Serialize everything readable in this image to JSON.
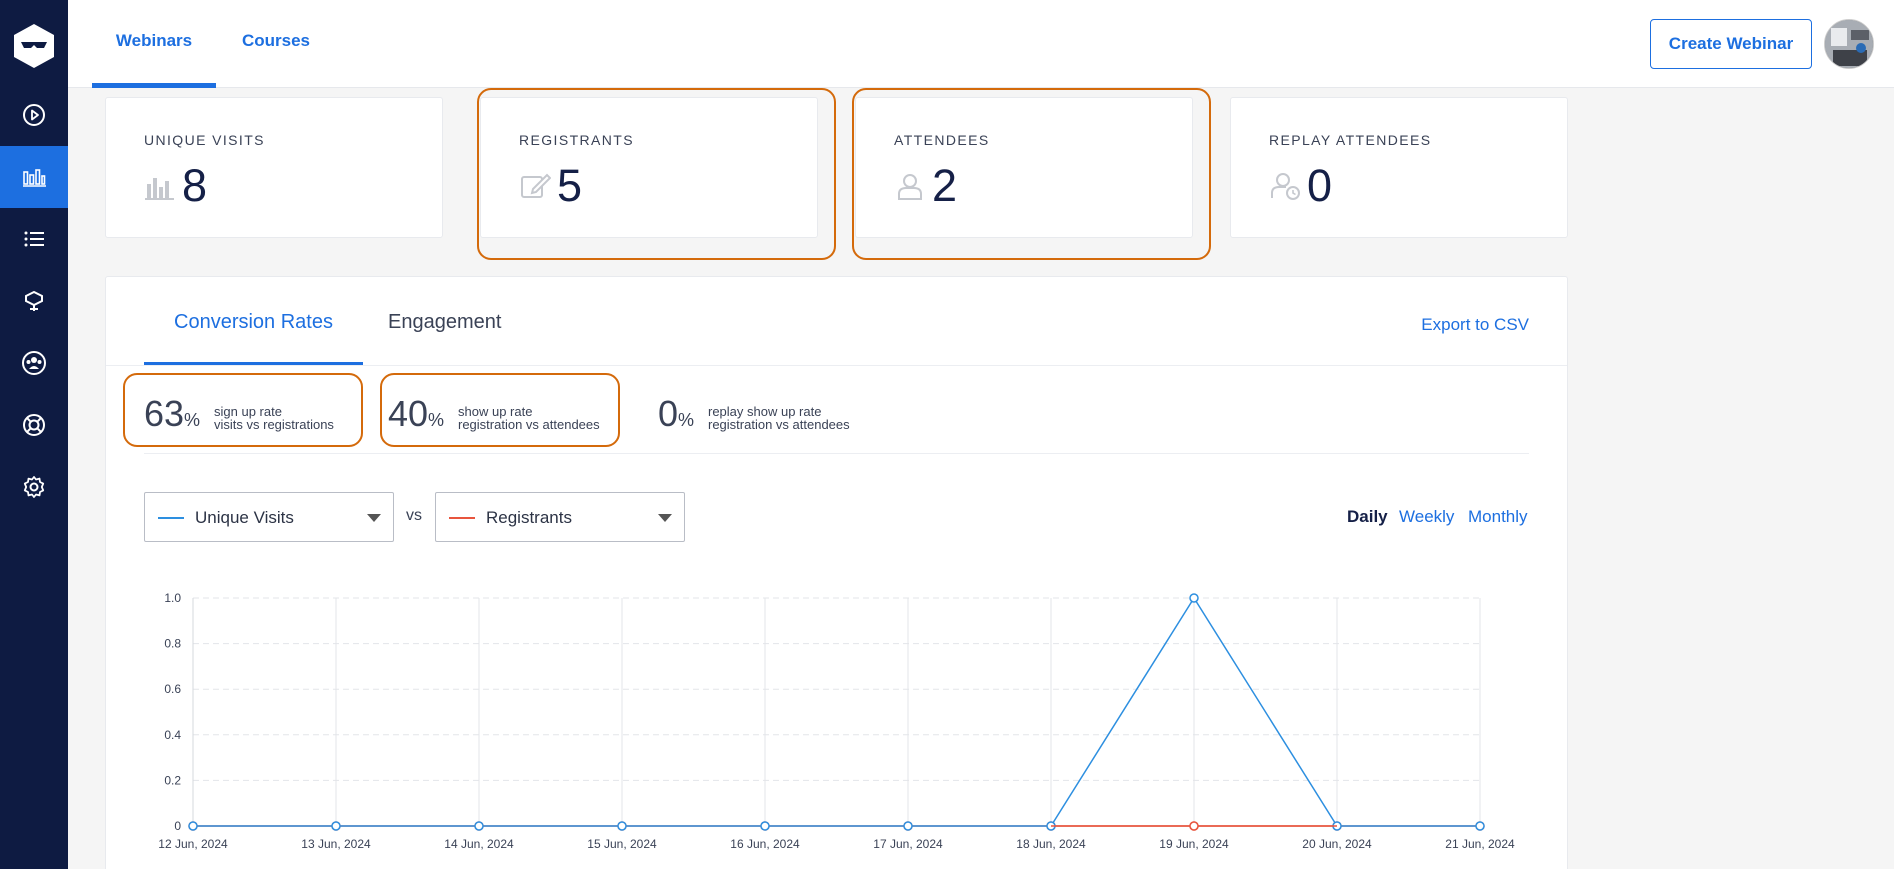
{
  "sidebar": {
    "items": [
      {
        "icon": "play-circle-icon"
      },
      {
        "icon": "bar-chart-icon",
        "active": true
      },
      {
        "icon": "list-icon"
      },
      {
        "icon": "integrations-icon"
      },
      {
        "icon": "users-icon"
      },
      {
        "icon": "lifebuoy-icon"
      },
      {
        "icon": "gear-icon"
      }
    ]
  },
  "header": {
    "tabs": [
      {
        "label": "Webinars",
        "active": true
      },
      {
        "label": "Courses",
        "active": false
      }
    ],
    "create_button": "Create Webinar"
  },
  "stats": [
    {
      "label": "UNIQUE VISITS",
      "value": "8",
      "icon": "bar-chart-icon"
    },
    {
      "label": "REGISTRANTS",
      "value": "5",
      "icon": "edit-icon"
    },
    {
      "label": "ATTENDEES",
      "value": "2",
      "icon": "user-icon"
    },
    {
      "label": "REPLAY ATTENDEES",
      "value": "0",
      "icon": "user-clock-icon"
    }
  ],
  "panel": {
    "tabs": [
      {
        "label": "Conversion Rates",
        "active": true
      },
      {
        "label": "Engagement",
        "active": false
      }
    ],
    "export": "Export to CSV",
    "rates": [
      {
        "value": "63",
        "unit": "%",
        "line1": "sign up rate",
        "line2": "visits vs registrations"
      },
      {
        "value": "40",
        "unit": "%",
        "line1": "show up rate",
        "line2": "registration vs attendees"
      },
      {
        "value": "0",
        "unit": "%",
        "line1": "replay show up rate",
        "line2": "registration vs attendees"
      }
    ],
    "compare": {
      "left": "Unique Visits",
      "vs": "vs",
      "right": "Registrants"
    },
    "periods": [
      {
        "label": "Daily",
        "active": true
      },
      {
        "label": "Weekly",
        "active": false
      },
      {
        "label": "Monthly",
        "active": false
      }
    ]
  },
  "colors": {
    "accent": "#1d6fe0",
    "sidebar": "#0e1b42",
    "highlight": "#d46a0b",
    "series_visits": "#2d8fe0",
    "series_registrants": "#e8553e"
  },
  "chart_data": {
    "type": "line",
    "categories": [
      "12 Jun, 2024",
      "13 Jun, 2024",
      "14 Jun, 2024",
      "15 Jun, 2024",
      "16 Jun, 2024",
      "17 Jun, 2024",
      "18 Jun, 2024",
      "19 Jun, 2024",
      "20 Jun, 2024",
      "21 Jun, 2024"
    ],
    "series": [
      {
        "name": "Unique Visits",
        "values": [
          0,
          0,
          0,
          0,
          0,
          0,
          0,
          1,
          0,
          0
        ]
      },
      {
        "name": "Registrants",
        "values": [
          0,
          0,
          0,
          0,
          0,
          0,
          0,
          0,
          0,
          0
        ]
      }
    ],
    "ylim": [
      0,
      1
    ],
    "yticks": [
      "0",
      "0.2",
      "0.4",
      "0.6",
      "0.8",
      "1.0"
    ],
    "grid": true
  }
}
